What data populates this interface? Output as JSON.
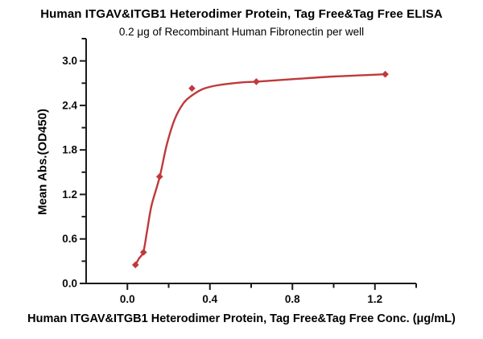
{
  "chart_data": {
    "type": "scatter",
    "title": "Human ITGAV&ITGB1 Heterodimer Protein, Tag Free&Tag Free ELISA",
    "subtitle": "0.2 μg of Recombinant Human Fibronectin per well",
    "xlabel": "Human ITGAV&ITGB1 Heterodimer Protein, Tag Free&Tag Free Conc. (μg/mL)",
    "ylabel": "Mean Abs.(OD450)",
    "xlim": [
      -0.2,
      1.4
    ],
    "ylim": [
      0,
      3.3
    ],
    "x_major_ticks": [
      0.0,
      0.4,
      0.8,
      1.2
    ],
    "x_minor_ticks": [
      0.2,
      0.6,
      1.0,
      1.4
    ],
    "y_major_ticks": [
      0.0,
      0.6,
      1.2,
      1.8,
      2.4,
      3.0
    ],
    "y_minor_ticks": [
      0.3,
      0.9,
      1.5,
      2.1,
      2.7,
      3.3
    ],
    "grid": false,
    "legend": null,
    "marker": "diamond",
    "line_color": "#c0393b",
    "marker_color": "#c0393b",
    "axis_color": "#1a1a1a",
    "points": [
      [
        0.039,
        0.25
      ],
      [
        0.078,
        0.42
      ],
      [
        0.156,
        1.44
      ],
      [
        0.313,
        2.63
      ],
      [
        0.625,
        2.72
      ],
      [
        1.25,
        2.82
      ]
    ],
    "fit_curve": [
      [
        0.039,
        0.25
      ],
      [
        0.055,
        0.33
      ],
      [
        0.078,
        0.43
      ],
      [
        0.095,
        0.7
      ],
      [
        0.117,
        1.05
      ],
      [
        0.157,
        1.44
      ],
      [
        0.19,
        1.86
      ],
      [
        0.229,
        2.21
      ],
      [
        0.272,
        2.43
      ],
      [
        0.311,
        2.53
      ],
      [
        0.365,
        2.62
      ],
      [
        0.435,
        2.67
      ],
      [
        0.55,
        2.71
      ],
      [
        0.625,
        2.72
      ],
      [
        0.78,
        2.75
      ],
      [
        1.0,
        2.79
      ],
      [
        1.25,
        2.82
      ]
    ]
  }
}
